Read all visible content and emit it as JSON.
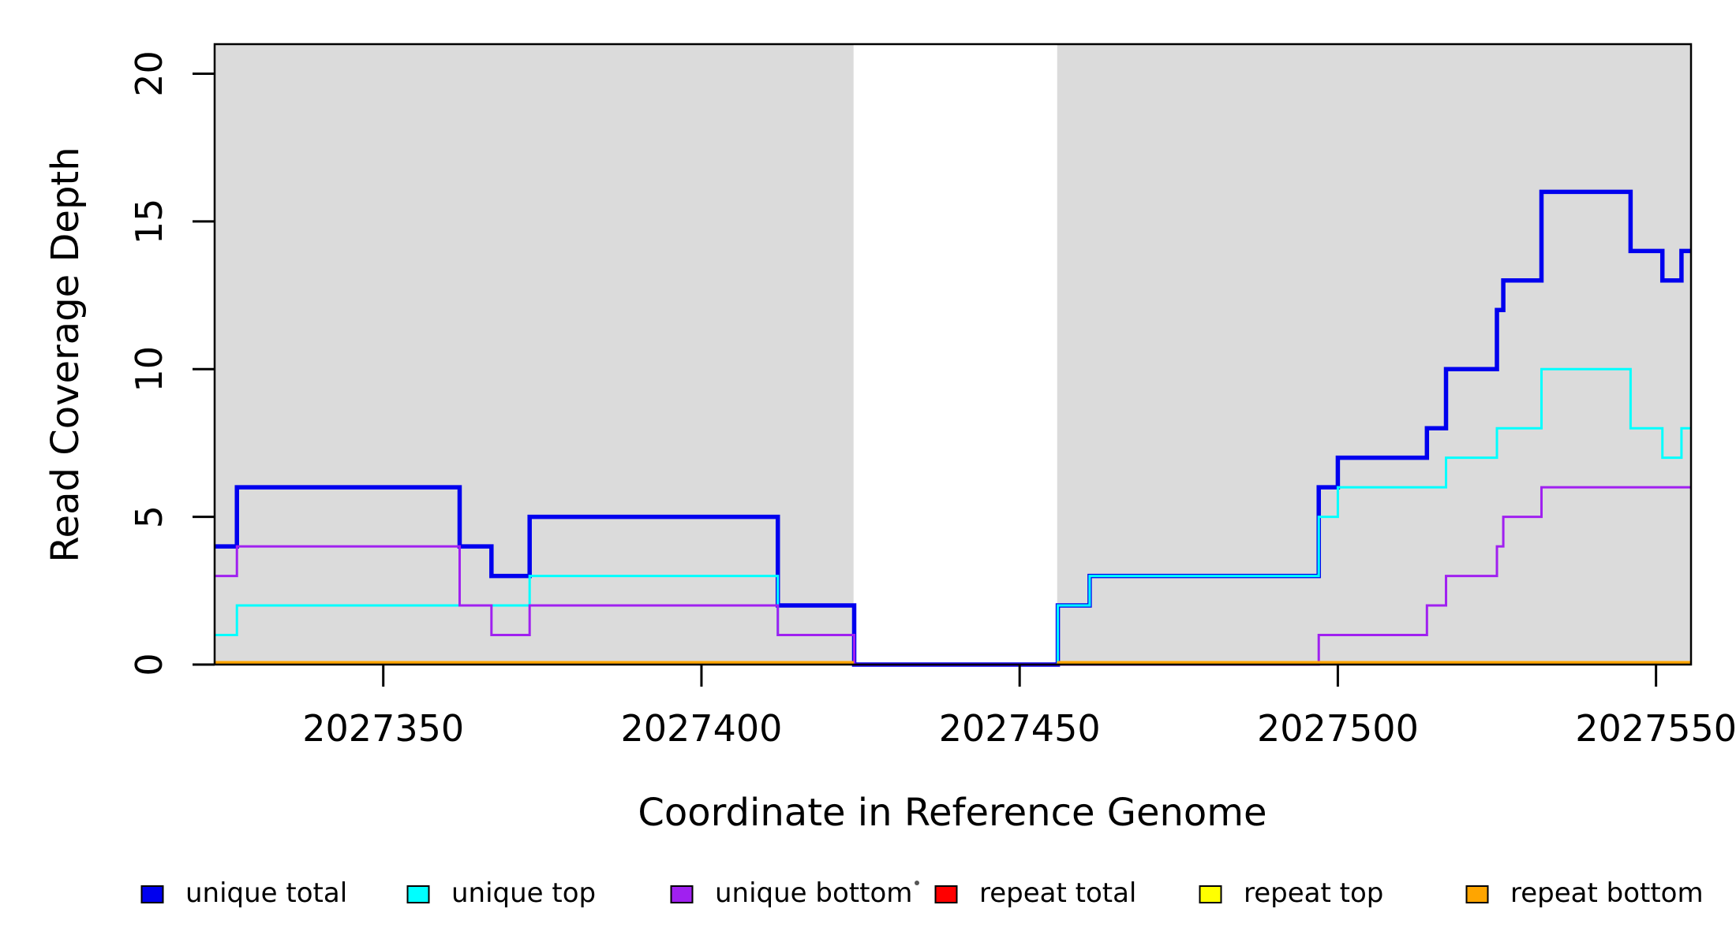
{
  "chart_data": {
    "type": "line",
    "subtype": "step",
    "title": "",
    "xlabel": "Coordinate in Reference Genome",
    "ylabel": "Read Coverage Depth",
    "xlim": [
      2027323.5,
      2027555.5
    ],
    "ylim": [
      0,
      21
    ],
    "x_ticks": [
      2027350,
      2027400,
      2027450,
      2027500,
      2027550
    ],
    "y_ticks": [
      0,
      5,
      10,
      15,
      20
    ],
    "grid": false,
    "legend_position": "bottom",
    "shading_color": "#DBDBDB",
    "shaded_regions": [
      {
        "x0": 2027323.5,
        "x1": 2027423.9
      },
      {
        "x0": 2027455.9,
        "x1": 2027555.5
      }
    ],
    "no_data_gap": {
      "x0": 2027423.9,
      "x1": 2027455.9
    },
    "series": [
      {
        "name": "unique total",
        "color": "#0000EE",
        "line_width": 5.5,
        "steps": [
          [
            2027323.5,
            4
          ],
          [
            2027327,
            6
          ],
          [
            2027362,
            4
          ],
          [
            2027367,
            3
          ],
          [
            2027373,
            5
          ],
          [
            2027412,
            2
          ],
          [
            2027424,
            0
          ],
          [
            2027456,
            2
          ],
          [
            2027461,
            3
          ],
          [
            2027497,
            6
          ],
          [
            2027500,
            7
          ],
          [
            2027514,
            8
          ],
          [
            2027517,
            10
          ],
          [
            2027525,
            12
          ],
          [
            2027526,
            13
          ],
          [
            2027532,
            16
          ],
          [
            2027546,
            14
          ],
          [
            2027551,
            13
          ],
          [
            2027554,
            14
          ]
        ],
        "end": 2027555.5
      },
      {
        "name": "unique top",
        "color": "#00FFFF",
        "line_width": 3,
        "steps": [
          [
            2027323.5,
            1
          ],
          [
            2027327,
            2
          ],
          [
            2027373,
            3
          ],
          [
            2027412,
            1
          ],
          [
            2027424,
            0
          ],
          [
            2027456,
            2
          ],
          [
            2027461,
            3
          ],
          [
            2027497,
            5
          ],
          [
            2027500,
            6
          ],
          [
            2027517,
            7
          ],
          [
            2027525,
            8
          ],
          [
            2027532,
            10
          ],
          [
            2027546,
            8
          ],
          [
            2027551,
            7
          ],
          [
            2027554,
            8
          ]
        ],
        "end": 2027555.5
      },
      {
        "name": "unique bottom",
        "color": "#A020F0",
        "line_width": 3,
        "steps": [
          [
            2027323.5,
            3
          ],
          [
            2027327,
            4
          ],
          [
            2027362,
            2
          ],
          [
            2027367,
            1
          ],
          [
            2027373,
            2
          ],
          [
            2027412,
            1
          ],
          [
            2027424,
            0
          ],
          [
            2027497,
            1
          ],
          [
            2027514,
            2
          ],
          [
            2027517,
            3
          ],
          [
            2027525,
            4
          ],
          [
            2027526,
            5
          ],
          [
            2027532,
            6
          ]
        ],
        "end": 2027555.5
      },
      {
        "name": "repeat total",
        "color": "#FF0000",
        "line_width": 3,
        "segments": [
          [
            2027323.5,
            2027423.9,
            0
          ],
          [
            2027455.9,
            2027555.5,
            0
          ]
        ]
      },
      {
        "name": "repeat top",
        "color": "#FFFF00",
        "line_width": 3,
        "segments": [
          [
            2027323.5,
            2027423.9,
            0
          ],
          [
            2027455.9,
            2027555.5,
            0
          ]
        ]
      },
      {
        "name": "repeat bottom",
        "color": "#FFA500",
        "line_width": 4.5,
        "segments": [
          [
            2027323.5,
            2027423.9,
            0
          ],
          [
            2027455.9,
            2027555.5,
            0
          ]
        ]
      }
    ],
    "legend": [
      {
        "label": "unique total",
        "color": "#0000EE"
      },
      {
        "label": "unique top",
        "color": "#00FFFF"
      },
      {
        "label": "unique bottom",
        "color": "#A020F0"
      },
      {
        "label": "repeat total",
        "color": "#FF0000"
      },
      {
        "label": "repeat top",
        "color": "#FFFF00"
      },
      {
        "label": "repeat bottom",
        "color": "#FFA500"
      }
    ]
  }
}
